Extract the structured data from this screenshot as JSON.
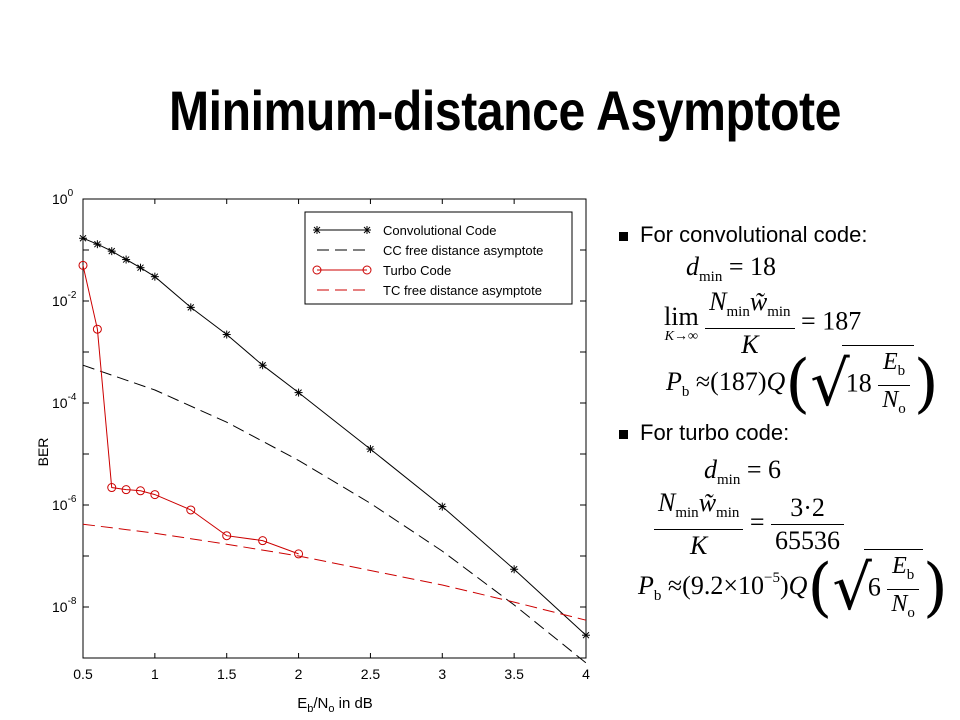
{
  "slide": {
    "title": "Minimum-distance Asymptote",
    "bullets": [
      "For convolutional code:",
      "For turbo code:"
    ]
  },
  "equations": {
    "cc": {
      "dmin_lhs": "d",
      "dmin_sub": "min",
      "dmin_rhs": "= 18",
      "lim": "lim",
      "lim_under": "K→∞",
      "lim_num_a": "N",
      "lim_num_a_sub": "min",
      "lim_num_b": "w̃",
      "lim_num_b_sub": "min",
      "lim_den": "K",
      "lim_rhs": "= 187",
      "pb_lhs": "P",
      "pb_sub": "b",
      "pb_approx": "≈",
      "pb_coef": "(187)",
      "pb_q": "Q",
      "pb_in_coef": "18",
      "pb_in_num": "E",
      "pb_in_num_sub": "b",
      "pb_in_den": "N",
      "pb_in_den_sub": "o"
    },
    "tc": {
      "dmin_lhs": "d",
      "dmin_sub": "min",
      "dmin_rhs": "= 6",
      "frac_num_a": "N",
      "frac_num_a_sub": "min",
      "frac_num_b": "w̃",
      "frac_num_b_sub": "min",
      "frac_den": "K",
      "frac_eq": "=",
      "rhs_num": "3·2",
      "rhs_den": "65536",
      "pb_lhs": "P",
      "pb_sub": "b",
      "pb_approx": "≈",
      "pb_coef": "(9.2×10",
      "pb_coef_sup": "−5",
      "pb_coef_close": ")",
      "pb_q": "Q",
      "pb_in_coef": "6",
      "pb_in_num": "E",
      "pb_in_num_sub": "b",
      "pb_in_den": "N",
      "pb_in_den_sub": "o"
    }
  },
  "chart_data": {
    "type": "line",
    "title": "",
    "xlabel_main": "E",
    "xlabel_sub1": "b",
    "xlabel_mid": "/N",
    "xlabel_sub2": "o",
    "xlabel_tail": " in dB",
    "ylabel": "BER",
    "xlim": [
      0.5,
      4
    ],
    "ylim": [
      1e-09,
      1
    ],
    "yscale": "log",
    "grid": false,
    "legend_position": "top-right",
    "x_ticks": [
      "0.5",
      "1",
      "1.5",
      "2",
      "2.5",
      "3",
      "3.5",
      "4"
    ],
    "y_ticks": [
      {
        "base": "10",
        "exp": "0"
      },
      {
        "base": "10",
        "exp": "-2"
      },
      {
        "base": "10",
        "exp": "-4"
      },
      {
        "base": "10",
        "exp": "-6"
      },
      {
        "base": "10",
        "exp": "-8"
      }
    ],
    "series": [
      {
        "name": "Convolutional Code",
        "color": "#000000",
        "style": "solid",
        "marker": "star",
        "points": [
          [
            0.5,
            0.17
          ],
          [
            0.6,
            0.13
          ],
          [
            0.7,
            0.095
          ],
          [
            0.8,
            0.065
          ],
          [
            0.9,
            0.045
          ],
          [
            1.0,
            0.03
          ],
          [
            1.25,
            0.0075
          ],
          [
            1.5,
            0.0022
          ],
          [
            1.75,
            0.00055
          ],
          [
            2.0,
            0.00016
          ],
          [
            2.5,
            1.25e-05
          ],
          [
            3.0,
            9.3e-07
          ],
          [
            3.5,
            5.5e-08
          ],
          [
            4.0,
            2.8e-09
          ]
        ]
      },
      {
        "name": "CC free distance asymptote",
        "color": "#000000",
        "style": "dashed",
        "marker": "none",
        "points": [
          [
            0.5,
            0.00055
          ],
          [
            1.0,
            0.00018
          ],
          [
            1.5,
            4.2e-05
          ],
          [
            2.0,
            7.5e-06
          ],
          [
            2.5,
            1.08e-06
          ],
          [
            3.0,
            1.25e-07
          ],
          [
            3.5,
            1.1e-08
          ],
          [
            4.0,
            8e-10
          ]
        ]
      },
      {
        "name": "Turbo Code",
        "color": "#cc0000",
        "style": "solid",
        "marker": "circle",
        "points": [
          [
            0.5,
            0.05
          ],
          [
            0.6,
            0.0028
          ],
          [
            0.7,
            2.2e-06
          ],
          [
            0.8,
            2e-06
          ],
          [
            0.9,
            1.9e-06
          ],
          [
            1.0,
            1.6e-06
          ],
          [
            1.25,
            8e-07
          ],
          [
            1.5,
            2.5e-07
          ],
          [
            1.75,
            2e-07
          ],
          [
            2.0,
            1.1e-07
          ]
        ]
      },
      {
        "name": "TC free distance asymptote",
        "color": "#cc0000",
        "style": "dashed",
        "marker": "none",
        "points": [
          [
            0.5,
            4.2e-07
          ],
          [
            1.0,
            2.8e-07
          ],
          [
            1.5,
            1.7e-07
          ],
          [
            2.0,
            1e-07
          ],
          [
            2.5,
            5.2e-08
          ],
          [
            3.0,
            2.7e-08
          ],
          [
            3.5,
            1.25e-08
          ],
          [
            4.0,
            5.5e-09
          ]
        ]
      }
    ]
  }
}
